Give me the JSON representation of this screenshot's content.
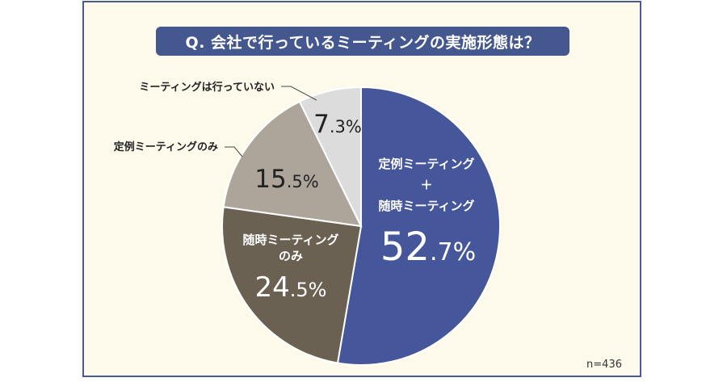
{
  "chart_data": {
    "type": "pie",
    "title": "Q. 会社で行っているミーティングの実施形態は？",
    "note": "n=436",
    "slices": [
      {
        "label_lines": [
          "定例ミーティング",
          "＋",
          "随時ミーティング"
        ],
        "value": 52.7,
        "int": "52",
        "dec": ".7",
        "color": "#45579a",
        "text_color": "#ffffff"
      },
      {
        "label_lines": [
          "随時ミーティング",
          "のみ"
        ],
        "value": 24.5,
        "int": "24",
        "dec": ".5",
        "color": "#6b6153",
        "text_color": "#ffffff"
      },
      {
        "label_lines": [
          "定例ミーティングのみ"
        ],
        "value": 15.5,
        "int": "15",
        "dec": ".5",
        "color": "#ada59a",
        "text_color": "#222222"
      },
      {
        "label_lines": [
          "ミーティングは行っていない"
        ],
        "value": 7.3,
        "int": "7",
        "dec": ".3",
        "color": "#dcdcdc",
        "text_color": "#222222"
      }
    ],
    "percent_sign": "%"
  }
}
